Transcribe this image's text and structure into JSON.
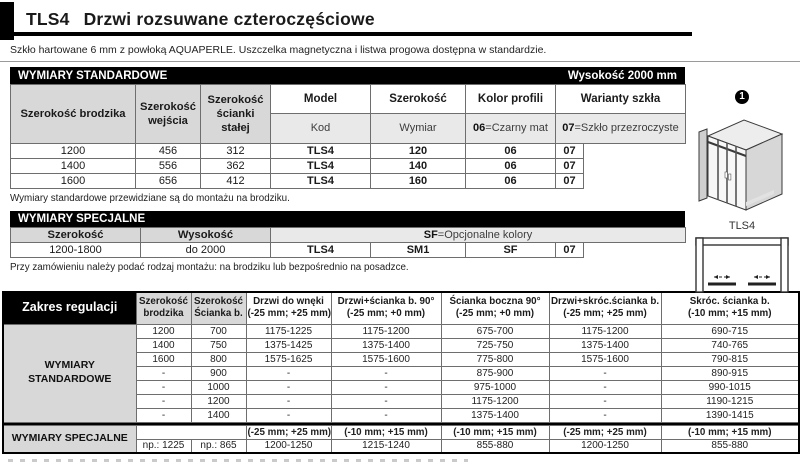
{
  "colors": {
    "band_bg": "#000000",
    "band_fg": "#ffffff",
    "header_grey": "#d8d8d8",
    "subheader_grey": "#e9e9e9",
    "border_grey": "#6e6e6e"
  },
  "page": {
    "title_code": "TLS4",
    "title_text": "Drzwi rozsuwane czteroczęściowe",
    "subtitle": "Szkło hartowane 6 mm z powłoką AQUAPERLE. Uszczelka magnetyczna i listwa progowa dostępna w standardzie."
  },
  "standard": {
    "band_title": "WYMIARY STANDARDOWE",
    "band_right": "Wysokość 2000 mm",
    "col1": "Szerokość brodzika",
    "col2": "Szerokość wejścia",
    "col3": "Szerokość ścianki stałej",
    "model_header": "Model",
    "model_sub": "Kod",
    "width_header": "Szerokość",
    "width_sub": "Wymiar",
    "color_header": "Kolor profili",
    "color_sub_bold": "06",
    "color_sub_rest": "=Czarny mat",
    "glass_header": "Warianty szkła",
    "glass_sub_bold": "07",
    "glass_sub_rest": "=Szkło przezroczyste",
    "rows": [
      [
        "1200",
        "456",
        "312",
        "TLS4",
        "120",
        "06",
        "07"
      ],
      [
        "1400",
        "556",
        "362",
        "TLS4",
        "140",
        "06",
        "07"
      ],
      [
        "1600",
        "656",
        "412",
        "TLS4",
        "160",
        "06",
        "07"
      ]
    ],
    "footnote": "Wymiary standardowe przewidziane są do montażu na brodziku."
  },
  "special": {
    "band_title": "WYMIARY SPECJALNE",
    "width_header": "Szerokość",
    "height_header": "Wysokość",
    "sf_bold": "SF",
    "sf_rest": "=Opcjonalne kolory",
    "row": [
      "1200-1800",
      "do 2000",
      "TLS4",
      "SM1",
      "SF",
      "07"
    ],
    "footnote": "Przy zamówieniu należy podać rodzaj montażu: na brodziku lub bezpośrednio na posadzce."
  },
  "illustration": {
    "marker": "1",
    "caption": "TLS4"
  },
  "regulation": {
    "title": "Zakres regulacji",
    "col1_line1": "Szerokość",
    "col1_line2": "brodzika",
    "col2_line1": "Szerokość",
    "col2_line2": "Ścianka b.",
    "cols": [
      {
        "name": "Drzwi do wnęki",
        "tol": "(-25 mm; +25 mm)"
      },
      {
        "name": "Drzwi+ścianka b. 90°",
        "tol": "(-25 mm; +0 mm)"
      },
      {
        "name": "Ścianka boczna 90°",
        "tol": "(-25 mm; +0 mm)"
      },
      {
        "name": "Drzwi+skróc.ścianka b.",
        "tol": "(-25 mm; +25 mm)"
      },
      {
        "name": "Skróc. ścianka b.",
        "tol": "(-10 mm; +15 mm)"
      }
    ],
    "std_label": "WYMIARY STANDARDOWE",
    "rows": [
      [
        "1200",
        "700",
        "1175-1225",
        "1175-1200",
        "675-700",
        "1175-1200",
        "690-715"
      ],
      [
        "1400",
        "750",
        "1375-1425",
        "1375-1400",
        "725-750",
        "1375-1400",
        "740-765"
      ],
      [
        "1600",
        "800",
        "1575-1625",
        "1575-1600",
        "775-800",
        "1575-1600",
        "790-815"
      ],
      [
        "-",
        "900",
        "-",
        "-",
        "875-900",
        "-",
        "890-915"
      ],
      [
        "-",
        "1000",
        "-",
        "-",
        "975-1000",
        "-",
        "990-1015"
      ],
      [
        "-",
        "1200",
        "-",
        "-",
        "1175-1200",
        "-",
        "1190-1215"
      ],
      [
        "-",
        "1400",
        "-",
        "-",
        "1375-1400",
        "-",
        "1390-1415"
      ]
    ],
    "special_label": "WYMIARY SPECJALNE",
    "special_tols": [
      "(-25 mm; +25 mm)",
      "(-10 mm; +15 mm)",
      "(-10 mm; +15 mm)",
      "(-25 mm; +25 mm)",
      "(-10 mm; +15 mm)"
    ],
    "special_row": [
      "np.: 1225",
      "np.: 865",
      "1200-1250",
      "1215-1240",
      "855-880",
      "1200-1250",
      "855-880"
    ]
  }
}
